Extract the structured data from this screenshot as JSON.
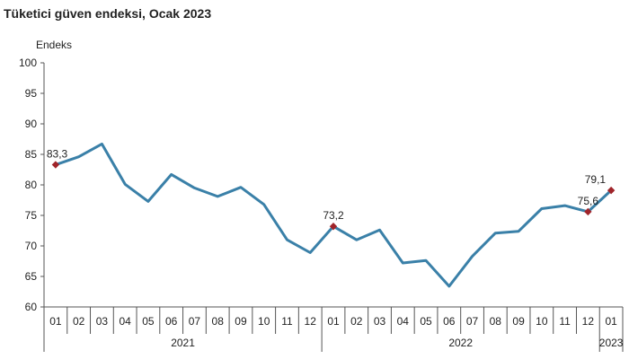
{
  "chart_data": {
    "type": "line",
    "title": "Tüketici güven endeksi, Ocak 2023",
    "ylabel": "Endeks",
    "xlabel": "",
    "ylim": [
      60,
      100
    ],
    "yticks": [
      "60",
      "65",
      "70",
      "75",
      "80",
      "85",
      "90",
      "95",
      "100"
    ],
    "categories": [
      "01",
      "02",
      "03",
      "04",
      "05",
      "06",
      "07",
      "08",
      "09",
      "10",
      "11",
      "12",
      "01",
      "02",
      "03",
      "04",
      "05",
      "06",
      "07",
      "08",
      "09",
      "10",
      "11",
      "12",
      "01"
    ],
    "years": [
      {
        "label": "2021",
        "start": 0,
        "end": 11
      },
      {
        "label": "2022",
        "start": 12,
        "end": 23
      },
      {
        "label": "2023",
        "start": 24,
        "end": 24
      }
    ],
    "series": [
      {
        "color": "#3a80a8",
        "values": [
          83.3,
          84.6,
          86.7,
          80.1,
          77.3,
          81.7,
          79.5,
          78.1,
          79.6,
          76.8,
          71.0,
          68.9,
          73.2,
          71.0,
          72.6,
          67.2,
          67.6,
          63.4,
          68.3,
          72.1,
          72.4,
          76.1,
          76.6,
          75.6,
          79.1
        ]
      }
    ],
    "markers": [
      {
        "index": 0,
        "label": "83,3"
      },
      {
        "index": 12,
        "label": "73,2"
      },
      {
        "index": 23,
        "label": "75,6"
      },
      {
        "index": 24,
        "label": "79,1"
      }
    ],
    "marker_color": "#a0242a",
    "grid": false
  }
}
